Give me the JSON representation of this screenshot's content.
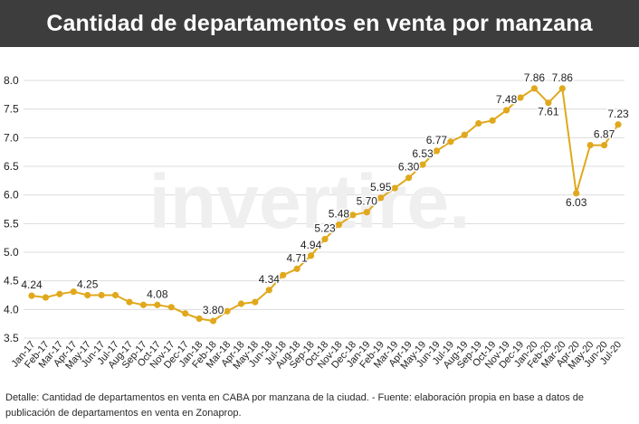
{
  "header": {
    "title": "Cantidad de departamentos en venta por manzana"
  },
  "watermark": "invertire.",
  "colors": {
    "line": "#e0a81c",
    "marker": "#e0a81c",
    "header_bg": "#3d3d3d",
    "grid": "#dcdcdc",
    "text": "#222222"
  },
  "footer": {
    "text": "Detalle: Cantidad de departamentos en venta en CABA por manzana de la ciudad. - Fuente: elaboración propia en base a datos de publicación de departamentos en venta en Zonaprop."
  },
  "chart_data": {
    "type": "line",
    "title": "Cantidad de departamentos en venta por manzana",
    "xlabel": "",
    "ylabel": "",
    "ylim": [
      3.5,
      8.0
    ],
    "yticks": [
      "3.5",
      "4.0",
      "4.5",
      "5.0",
      "5.5",
      "6.0",
      "6.5",
      "7.0",
      "7.5",
      "8.0"
    ],
    "grid": true,
    "categories": [
      "Jan-17",
      "Feb-17",
      "Mar-17",
      "Apr-17",
      "May-17",
      "Jun-17",
      "Jul-17",
      "Aug-17",
      "Sep-17",
      "Oct-17",
      "Nov-17",
      "Dec-17",
      "Jan-18",
      "Feb-18",
      "Mar-18",
      "Apr-18",
      "May-18",
      "Jun-18",
      "Jul-18",
      "Aug-18",
      "Sep-18",
      "Oct-18",
      "Nov-18",
      "Dec-18",
      "Jan-19",
      "Feb-19",
      "Mar-19",
      "Apr-19",
      "May-19",
      "Jun-19",
      "Jul-19",
      "Aug-19",
      "Sep-19",
      "Oct-19",
      "Nov-19",
      "Dec-19",
      "Jan-20",
      "Feb-20",
      "Mar-20",
      "Apr-20",
      "May-20",
      "Jun-20",
      "Jul-20"
    ],
    "series": [
      {
        "values": [
          4.24,
          4.21,
          4.27,
          4.31,
          4.25,
          4.25,
          4.25,
          4.13,
          4.08,
          4.08,
          4.04,
          3.93,
          3.84,
          3.8,
          3.97,
          4.1,
          4.13,
          4.34,
          4.6,
          4.71,
          4.94,
          5.23,
          5.48,
          5.65,
          5.7,
          5.95,
          6.12,
          6.3,
          6.53,
          6.77,
          6.93,
          7.05,
          7.25,
          7.3,
          7.48,
          7.7,
          7.86,
          7.61,
          7.86,
          6.03,
          6.87,
          6.87,
          7.23
        ],
        "labels": [
          "4.24",
          "",
          "",
          "",
          "4.25",
          "",
          "",
          "",
          "",
          "4.08",
          "",
          "",
          "",
          "3.80",
          "",
          "",
          "",
          "4.34",
          "",
          "4.71",
          "4.94",
          "5.23",
          "5.48",
          "",
          "5.70",
          "5.95",
          "",
          "6.30",
          "6.53",
          "6.77",
          "",
          "",
          "",
          "",
          "7.48",
          "",
          "7.86",
          "7.61",
          "7.86",
          "6.03",
          "",
          "6.87",
          "7.23"
        ]
      }
    ]
  }
}
